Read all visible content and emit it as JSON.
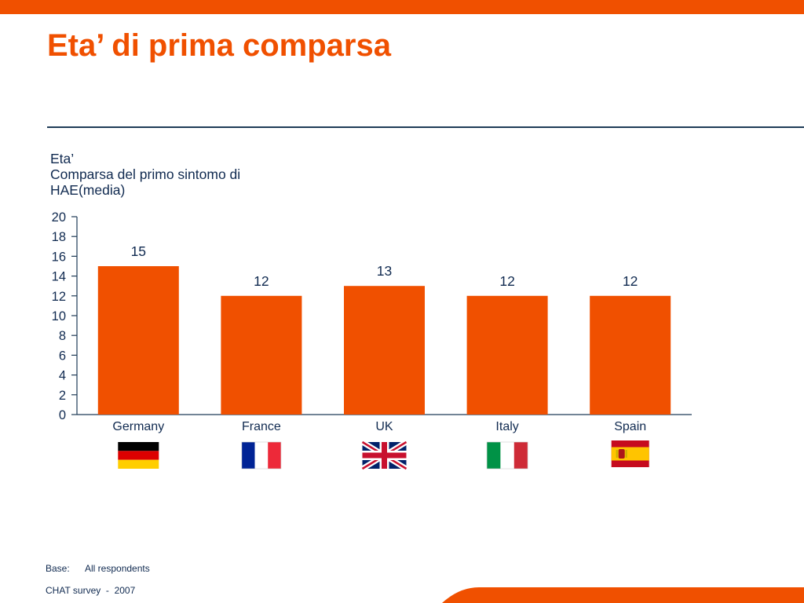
{
  "page": {
    "title": "Eta’ di prima comparsa",
    "y_caption": [
      "Eta’",
      "Comparsa del primo sintomo di",
      "HAE(media)"
    ],
    "footer_base_label": "Base:",
    "footer_base_value": "All respondents",
    "footer_source": "CHAT survey  -  2007"
  },
  "colors": {
    "accent": "#f05000",
    "text_dark": "#102a50",
    "axis": "#1f3b57"
  },
  "chart_data": {
    "type": "bar",
    "title": "",
    "ylabel": "Eta’ Comparsa del primo sintomo di HAE(media)",
    "xlabel": "",
    "categories": [
      "Germany",
      "France",
      "UK",
      "Italy",
      "Spain"
    ],
    "values": [
      15,
      12,
      13,
      12,
      12
    ],
    "data_labels": [
      "15",
      "12",
      "13",
      "12",
      "12"
    ],
    "ylim": [
      0,
      20
    ],
    "yticks": [
      0,
      2,
      4,
      6,
      8,
      10,
      12,
      14,
      16,
      18,
      20
    ],
    "bar_color": "#f05000",
    "grid": false,
    "legend": "none",
    "flags": [
      "germany-flag",
      "france-flag",
      "uk-flag",
      "italy-flag",
      "spain-flag"
    ]
  }
}
